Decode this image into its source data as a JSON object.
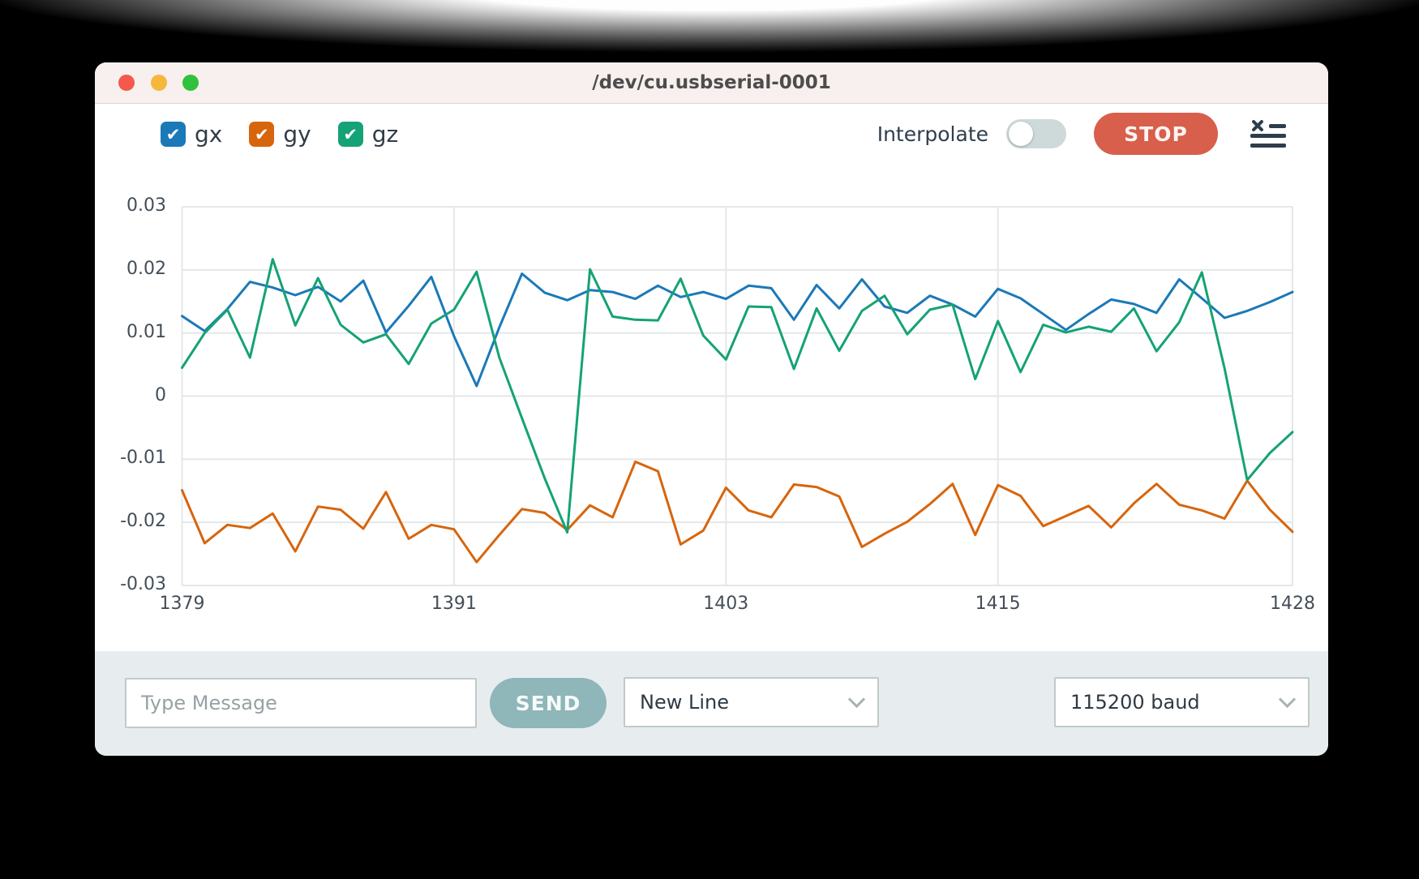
{
  "window": {
    "title": "/dev/cu.usbserial-0001"
  },
  "toolbar": {
    "legend": [
      {
        "label": "gx",
        "checked": true
      },
      {
        "label": "gy",
        "checked": true
      },
      {
        "label": "gz",
        "checked": true
      }
    ],
    "interpolate_label": "Interpolate",
    "interpolate_on": false,
    "stop_label": "STOP"
  },
  "chart_data": {
    "type": "line",
    "x_start": 1379,
    "x_end": 1428,
    "x_ticks": [
      "1379",
      "1391",
      "1403",
      "1415",
      "1428"
    ],
    "x_tick_indices": [
      0,
      12,
      24,
      36,
      49
    ],
    "y_ticks": [
      "0.03",
      "0.02",
      "0.01",
      "0",
      "-0.01",
      "-0.02",
      "-0.03"
    ],
    "ylim": [
      -0.03,
      0.03
    ],
    "grid": true,
    "legend_position": "top-left-checkboxes",
    "series": [
      {
        "name": "gx",
        "color": "#1b79b8",
        "values": [
          0.0127,
          0.0103,
          0.0138,
          0.0181,
          0.0172,
          0.016,
          0.0173,
          0.015,
          0.0183,
          0.0101,
          0.0143,
          0.0189,
          0.0095,
          0.0016,
          0.0109,
          0.0194,
          0.0164,
          0.0152,
          0.0168,
          0.0165,
          0.0154,
          0.0175,
          0.0157,
          0.0165,
          0.0154,
          0.0175,
          0.0171,
          0.0121,
          0.0176,
          0.0139,
          0.0185,
          0.0142,
          0.0132,
          0.0159,
          0.0145,
          0.0126,
          0.017,
          0.0155,
          0.013,
          0.0105,
          0.013,
          0.0153,
          0.0146,
          0.0132,
          0.0185,
          0.0155,
          0.0124,
          0.0135,
          0.0149,
          0.0165
        ]
      },
      {
        "name": "gy",
        "color": "#d7650d",
        "values": [
          -0.0149,
          -0.0233,
          -0.0204,
          -0.0209,
          -0.0186,
          -0.0246,
          -0.0175,
          -0.018,
          -0.021,
          -0.0152,
          -0.0226,
          -0.0204,
          -0.0211,
          -0.0263,
          -0.022,
          -0.0179,
          -0.0185,
          -0.0212,
          -0.0173,
          -0.0192,
          -0.0104,
          -0.0119,
          -0.0235,
          -0.0213,
          -0.0145,
          -0.0181,
          -0.0192,
          -0.014,
          -0.0144,
          -0.0159,
          -0.0239,
          -0.0218,
          -0.0199,
          -0.0171,
          -0.0139,
          -0.022,
          -0.0141,
          -0.0158,
          -0.0206,
          -0.019,
          -0.0174,
          -0.0208,
          -0.017,
          -0.0139,
          -0.0172,
          -0.0181,
          -0.0194,
          -0.0134,
          -0.018,
          -0.0215
        ]
      },
      {
        "name": "gz",
        "color": "#15a276",
        "values": [
          0.0045,
          0.01,
          0.0137,
          0.0061,
          0.0217,
          0.0112,
          0.0187,
          0.0113,
          0.0085,
          0.0098,
          0.0051,
          0.0115,
          0.0137,
          0.0197,
          0.0061,
          -0.0035,
          -0.013,
          -0.0216,
          0.0201,
          0.0126,
          0.0121,
          0.012,
          0.0186,
          0.0096,
          0.0058,
          0.0142,
          0.0141,
          0.0043,
          0.0139,
          0.0072,
          0.0135,
          0.0159,
          0.0098,
          0.0137,
          0.0145,
          0.0027,
          0.0119,
          0.0038,
          0.0113,
          0.0101,
          0.011,
          0.0102,
          0.0139,
          0.0071,
          0.0117,
          0.0196,
          0.0044,
          -0.0133,
          -0.009,
          -0.0057
        ]
      }
    ]
  },
  "bottom_bar": {
    "message_placeholder": "Type Message",
    "send_label": "SEND",
    "line_ending_value": "New Line",
    "baud_value": "115200 baud"
  }
}
